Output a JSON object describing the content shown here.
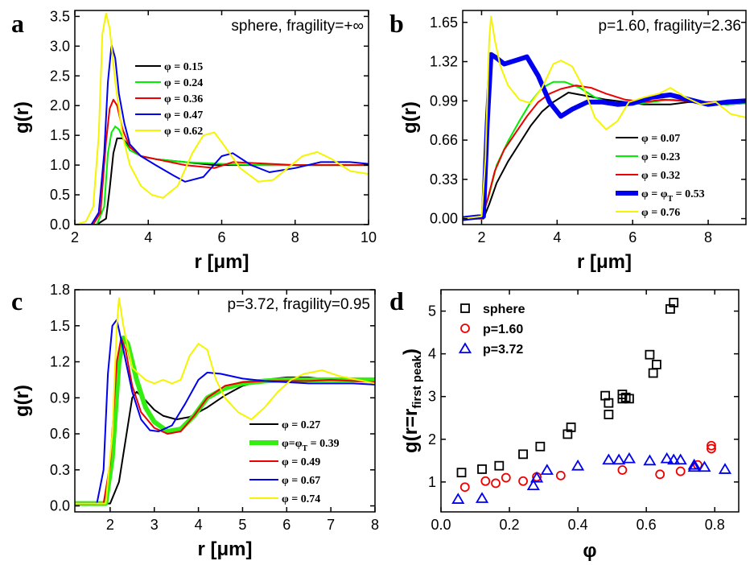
{
  "figure": {
    "panel_letters": [
      "a",
      "b",
      "c",
      "d"
    ]
  },
  "chart_data": [
    {
      "id": "a",
      "type": "line",
      "title": "sphere, fragility=+∞",
      "xlabel": "r [μm]",
      "ylabel": "g(r)",
      "xlim": [
        2,
        10
      ],
      "ylim": [
        0,
        3.6
      ],
      "xticks": [
        2,
        4,
        6,
        8,
        10
      ],
      "yticks": [
        0.0,
        0.5,
        1.0,
        1.5,
        2.0,
        2.5,
        3.0,
        3.5
      ],
      "ytick_decimals": 1,
      "legend_position": "top-center",
      "series": [
        {
          "name": "φ = 0.15",
          "color": "#000000",
          "width": 2,
          "x": [
            2.0,
            2.6,
            2.85,
            2.95,
            3.05,
            3.15,
            3.3,
            3.5,
            3.8,
            4.2,
            5.0,
            5.8,
            6.5,
            7.5,
            8.5,
            9.5,
            10.0
          ],
          "y": [
            0,
            0,
            0.1,
            0.6,
            1.2,
            1.45,
            1.45,
            1.3,
            1.15,
            1.1,
            1.05,
            1.0,
            1.0,
            1.0,
            1.0,
            1.0,
            1.0
          ]
        },
        {
          "name": "φ = 0.24",
          "color": "#00ee00",
          "width": 2,
          "x": [
            2.0,
            2.6,
            2.8,
            2.9,
            3.0,
            3.1,
            3.2,
            3.35,
            3.5,
            3.8,
            4.2,
            5.0,
            6.0,
            7.0,
            8.0,
            9.0,
            10.0
          ],
          "y": [
            0,
            0,
            0.3,
            1.2,
            1.55,
            1.65,
            1.6,
            1.4,
            1.25,
            1.15,
            1.1,
            1.05,
            1.02,
            1.0,
            1.0,
            1.0,
            1.0
          ]
        },
        {
          "name": "φ = 0.36",
          "color": "#ee0000",
          "width": 2,
          "x": [
            2.0,
            2.5,
            2.7,
            2.85,
            2.95,
            3.05,
            3.15,
            3.3,
            3.5,
            3.8,
            4.2,
            5.0,
            5.8,
            6.3,
            7.0,
            8.0,
            9.0,
            10.0
          ],
          "y": [
            0,
            0,
            0.2,
            1.4,
            1.95,
            2.1,
            2.0,
            1.6,
            1.3,
            1.15,
            1.1,
            1.0,
            0.95,
            1.05,
            1.03,
            1.0,
            1.0,
            1.0
          ]
        },
        {
          "name": "φ = 0.47",
          "color": "#0000ee",
          "width": 2,
          "x": [
            2.0,
            2.45,
            2.65,
            2.8,
            2.9,
            3.0,
            3.1,
            3.2,
            3.35,
            3.5,
            3.8,
            4.2,
            4.7,
            5.0,
            5.5,
            6.0,
            6.3,
            6.8,
            7.3,
            8.0,
            8.7,
            9.5,
            10.0
          ],
          "y": [
            0,
            0,
            0.2,
            1.2,
            2.4,
            3.02,
            2.8,
            2.2,
            1.7,
            1.35,
            1.15,
            1.0,
            0.82,
            0.72,
            0.8,
            1.15,
            1.2,
            1.0,
            0.88,
            0.95,
            1.05,
            1.05,
            1.02
          ]
        },
        {
          "name": "φ = 0.62",
          "color": "#f5f500",
          "width": 2,
          "x": [
            2.0,
            2.3,
            2.5,
            2.65,
            2.75,
            2.85,
            2.95,
            3.1,
            3.3,
            3.5,
            3.8,
            4.1,
            4.4,
            4.8,
            5.2,
            5.5,
            5.8,
            6.1,
            6.5,
            7.0,
            7.4,
            7.8,
            8.2,
            8.6,
            9.0,
            9.5,
            10.0
          ],
          "y": [
            0,
            0.05,
            0.3,
            1.5,
            3.2,
            3.55,
            3.3,
            2.4,
            1.5,
            1.0,
            0.65,
            0.5,
            0.45,
            0.65,
            1.2,
            1.5,
            1.55,
            1.3,
            0.95,
            0.72,
            0.75,
            0.95,
            1.15,
            1.22,
            1.1,
            0.9,
            0.85
          ]
        }
      ]
    },
    {
      "id": "b",
      "type": "line",
      "title": "p=1.60, fragility=2.36",
      "xlabel": "r [μm]",
      "ylabel": "g(r)",
      "xlim": [
        1.5,
        9
      ],
      "ylim": [
        -0.05,
        1.75
      ],
      "xticks": [
        2,
        4,
        6,
        8
      ],
      "yticks": [
        0.0,
        0.33,
        0.66,
        0.99,
        1.32,
        1.65
      ],
      "ytick_decimals": 2,
      "legend_position": "bottom-right",
      "series": [
        {
          "name": "φ = 0.07",
          "color": "#000000",
          "width": 2,
          "x": [
            1.5,
            2.05,
            2.2,
            2.4,
            2.7,
            3.0,
            3.3,
            3.6,
            3.9,
            4.3,
            4.8,
            5.3,
            5.8,
            6.3,
            7.0,
            7.5,
            8.0,
            8.5,
            9.0
          ],
          "y": [
            0,
            0,
            0.12,
            0.3,
            0.48,
            0.63,
            0.78,
            0.9,
            0.98,
            1.06,
            1.03,
            1.0,
            0.98,
            0.96,
            0.96,
            0.98,
            0.97,
            0.96,
            0.97
          ]
        },
        {
          "name": "φ = 0.23",
          "color": "#00ee00",
          "width": 2,
          "x": [
            1.5,
            2.0,
            2.2,
            2.4,
            2.7,
            3.0,
            3.3,
            3.6,
            3.9,
            4.2,
            4.6,
            5.0,
            5.5,
            6.0,
            6.5,
            7.0,
            7.5,
            8.0,
            8.5,
            9.0
          ],
          "y": [
            0,
            0,
            0.2,
            0.45,
            0.65,
            0.82,
            0.98,
            1.1,
            1.15,
            1.15,
            1.1,
            1.02,
            0.96,
            0.96,
            0.98,
            1.0,
            0.99,
            0.97,
            0.96,
            0.97
          ]
        },
        {
          "name": "φ = 0.32",
          "color": "#ee0000",
          "width": 2,
          "x": [
            1.5,
            2.0,
            2.15,
            2.35,
            2.6,
            2.9,
            3.2,
            3.5,
            3.8,
            4.1,
            4.5,
            4.9,
            5.3,
            5.8,
            6.3,
            6.8,
            7.3,
            7.8,
            8.3,
            9.0
          ],
          "y": [
            0,
            0,
            0.15,
            0.4,
            0.58,
            0.72,
            0.86,
            0.98,
            1.05,
            1.09,
            1.12,
            1.1,
            1.05,
            1.0,
            0.98,
            1.0,
            0.99,
            0.98,
            0.98,
            1.0
          ]
        },
        {
          "name": "φ=φT = 0.53",
          "label_main": "φ = φ",
          "label_sub": "T",
          "label_tail": " = 0.53",
          "color": "#0000ee",
          "width": 6,
          "x": [
            1.5,
            2.05,
            2.15,
            2.25,
            2.4,
            2.6,
            2.9,
            3.2,
            3.5,
            3.8,
            4.1,
            4.4,
            4.8,
            5.2,
            5.6,
            6.0,
            6.5,
            7.0,
            7.5,
            8.0,
            8.5,
            9.0
          ],
          "y": [
            0,
            0.02,
            0.8,
            1.38,
            1.35,
            1.3,
            1.33,
            1.36,
            1.2,
            0.98,
            0.86,
            0.92,
            0.98,
            0.98,
            0.96,
            0.97,
            1.02,
            1.04,
            1.0,
            0.96,
            0.98,
            0.99
          ]
        },
        {
          "name": "φ = 0.76",
          "color": "#f5f500",
          "width": 2,
          "x": [
            1.5,
            2.0,
            2.1,
            2.2,
            2.25,
            2.35,
            2.5,
            2.7,
            3.0,
            3.3,
            3.6,
            3.9,
            4.1,
            4.4,
            4.7,
            5.0,
            5.3,
            5.6,
            5.9,
            6.3,
            6.7,
            7.0,
            7.4,
            7.8,
            8.2,
            8.6,
            9.0
          ],
          "y": [
            0,
            0.02,
            0.5,
            1.5,
            1.7,
            1.5,
            1.28,
            1.12,
            1.0,
            0.97,
            1.1,
            1.3,
            1.33,
            1.28,
            1.1,
            0.85,
            0.75,
            0.82,
            0.98,
            1.02,
            1.05,
            1.1,
            1.02,
            0.96,
            0.98,
            0.88,
            0.85
          ]
        }
      ]
    },
    {
      "id": "c",
      "type": "line",
      "title": "p=3.72, fragility=0.95",
      "xlabel": "r [μm]",
      "ylabel": "g(r)",
      "xlim": [
        1.2,
        8
      ],
      "ylim": [
        -0.05,
        1.8
      ],
      "xticks": [
        2,
        3,
        4,
        5,
        6,
        7,
        8
      ],
      "yticks": [
        0.0,
        0.3,
        0.6,
        0.9,
        1.2,
        1.5,
        1.8
      ],
      "ytick_decimals": 1,
      "legend_position": "bottom-right",
      "series": [
        {
          "name": "φ = 0.27",
          "color": "#000000",
          "width": 2,
          "x": [
            1.2,
            2.0,
            2.2,
            2.35,
            2.5,
            2.6,
            2.8,
            3.0,
            3.2,
            3.5,
            3.8,
            4.2,
            4.6,
            5.0,
            5.5,
            6.0,
            6.5,
            7.0,
            7.5,
            8.0
          ],
          "y": [
            0.02,
            0.02,
            0.2,
            0.55,
            0.9,
            0.95,
            0.88,
            0.8,
            0.75,
            0.72,
            0.74,
            0.82,
            0.92,
            1.0,
            1.05,
            1.07,
            1.07,
            1.05,
            1.04,
            1.04
          ]
        },
        {
          "name": "φ=φT = 0.39",
          "label_main": "φ=φ",
          "label_sub": "T",
          "label_tail": " = 0.39",
          "color": "#33ee11",
          "width": 6,
          "x": [
            1.2,
            1.9,
            2.05,
            2.2,
            2.3,
            2.4,
            2.6,
            2.8,
            3.0,
            3.3,
            3.6,
            3.9,
            4.2,
            4.6,
            5.0,
            5.5,
            6.0,
            6.5,
            7.0,
            7.5,
            8.0
          ],
          "y": [
            0.02,
            0.02,
            0.4,
            1.2,
            1.4,
            1.35,
            1.05,
            0.82,
            0.7,
            0.62,
            0.64,
            0.75,
            0.9,
            0.98,
            1.02,
            1.04,
            1.05,
            1.05,
            1.05,
            1.05,
            1.05
          ]
        },
        {
          "name": "φ = 0.49",
          "color": "#ee0000",
          "width": 2,
          "x": [
            1.2,
            1.85,
            2.0,
            2.15,
            2.25,
            2.35,
            2.5,
            2.7,
            3.0,
            3.3,
            3.6,
            3.9,
            4.2,
            4.6,
            5.0,
            5.5,
            6.0,
            6.5,
            7.0,
            7.5,
            8.0
          ],
          "y": [
            0.02,
            0.02,
            0.35,
            1.2,
            1.4,
            1.3,
            1.0,
            0.78,
            0.65,
            0.6,
            0.62,
            0.75,
            0.9,
            1.0,
            1.03,
            1.04,
            1.04,
            1.04,
            1.05,
            1.04,
            1.03
          ]
        },
        {
          "name": "φ = 0.67",
          "color": "#0000ee",
          "width": 2,
          "x": [
            1.2,
            1.7,
            1.85,
            1.95,
            2.05,
            2.15,
            2.3,
            2.5,
            2.7,
            2.9,
            3.1,
            3.4,
            3.7,
            4.0,
            4.2,
            4.5,
            5.0,
            5.5,
            6.0,
            6.5,
            7.0,
            7.5,
            8.0
          ],
          "y": [
            0.02,
            0.02,
            0.3,
            1.1,
            1.5,
            1.55,
            1.3,
            0.95,
            0.72,
            0.63,
            0.62,
            0.67,
            0.85,
            1.05,
            1.11,
            1.1,
            1.06,
            1.04,
            1.03,
            1.02,
            1.02,
            1.02,
            1.01
          ]
        },
        {
          "name": "φ = 0.74",
          "color": "#f5f500",
          "width": 2,
          "x": [
            1.2,
            1.9,
            2.05,
            2.15,
            2.2,
            2.3,
            2.5,
            2.8,
            3.0,
            3.2,
            3.4,
            3.6,
            3.8,
            4.0,
            4.2,
            4.4,
            4.6,
            4.9,
            5.2,
            5.5,
            5.8,
            6.1,
            6.4,
            6.8,
            7.2,
            7.6,
            8.0
          ],
          "y": [
            0.02,
            0.02,
            0.6,
            1.5,
            1.73,
            1.5,
            1.15,
            1.05,
            1.02,
            1.05,
            1.02,
            1.05,
            1.25,
            1.35,
            1.3,
            1.05,
            0.9,
            0.78,
            0.72,
            0.82,
            0.95,
            1.05,
            1.1,
            1.13,
            1.08,
            1.05,
            1.02
          ]
        }
      ]
    },
    {
      "id": "d",
      "type": "scatter",
      "xlabel": "φ",
      "ylabel": "g(r=r_first peak)",
      "ylabel_main": "g(r=r",
      "ylabel_sub": "first peak",
      "ylabel_tail": ")",
      "xlim": [
        0,
        0.87
      ],
      "ylim": [
        0.3,
        5.5
      ],
      "xticks": [
        0.0,
        0.2,
        0.4,
        0.6,
        0.8
      ],
      "yticks": [
        1,
        2,
        3,
        4,
        5
      ],
      "xtick_decimals": 1,
      "ytick_decimals": 0,
      "legend_position": "top-left",
      "series": [
        {
          "name": "sphere",
          "marker": "square",
          "color": "#000000",
          "x": [
            0.06,
            0.12,
            0.17,
            0.24,
            0.29,
            0.37,
            0.38,
            0.48,
            0.49,
            0.49,
            0.53,
            0.53,
            0.54,
            0.55,
            0.61,
            0.62,
            0.63,
            0.67,
            0.68
          ],
          "y": [
            1.22,
            1.3,
            1.38,
            1.65,
            1.83,
            2.12,
            2.28,
            3.02,
            2.85,
            2.58,
            3.05,
            2.95,
            2.98,
            2.95,
            3.98,
            3.55,
            3.75,
            5.05,
            5.2
          ]
        },
        {
          "name": "p=1.60",
          "marker": "circle",
          "color": "#ee0000",
          "x": [
            0.07,
            0.13,
            0.16,
            0.19,
            0.24,
            0.28,
            0.35,
            0.53,
            0.64,
            0.7,
            0.75,
            0.79,
            0.79
          ],
          "y": [
            0.88,
            1.02,
            0.97,
            1.1,
            1.02,
            1.12,
            1.15,
            1.28,
            1.18,
            1.25,
            1.4,
            1.78,
            1.85
          ]
        },
        {
          "name": "p=3.72",
          "marker": "triangle",
          "color": "#0000ee",
          "x": [
            0.05,
            0.12,
            0.27,
            0.28,
            0.31,
            0.4,
            0.49,
            0.52,
            0.55,
            0.61,
            0.66,
            0.68,
            0.7,
            0.74,
            0.74,
            0.77,
            0.83
          ],
          "y": [
            0.6,
            0.62,
            0.92,
            1.1,
            1.28,
            1.38,
            1.52,
            1.52,
            1.55,
            1.5,
            1.55,
            1.52,
            1.52,
            1.4,
            1.35,
            1.35,
            1.3
          ]
        }
      ]
    }
  ]
}
